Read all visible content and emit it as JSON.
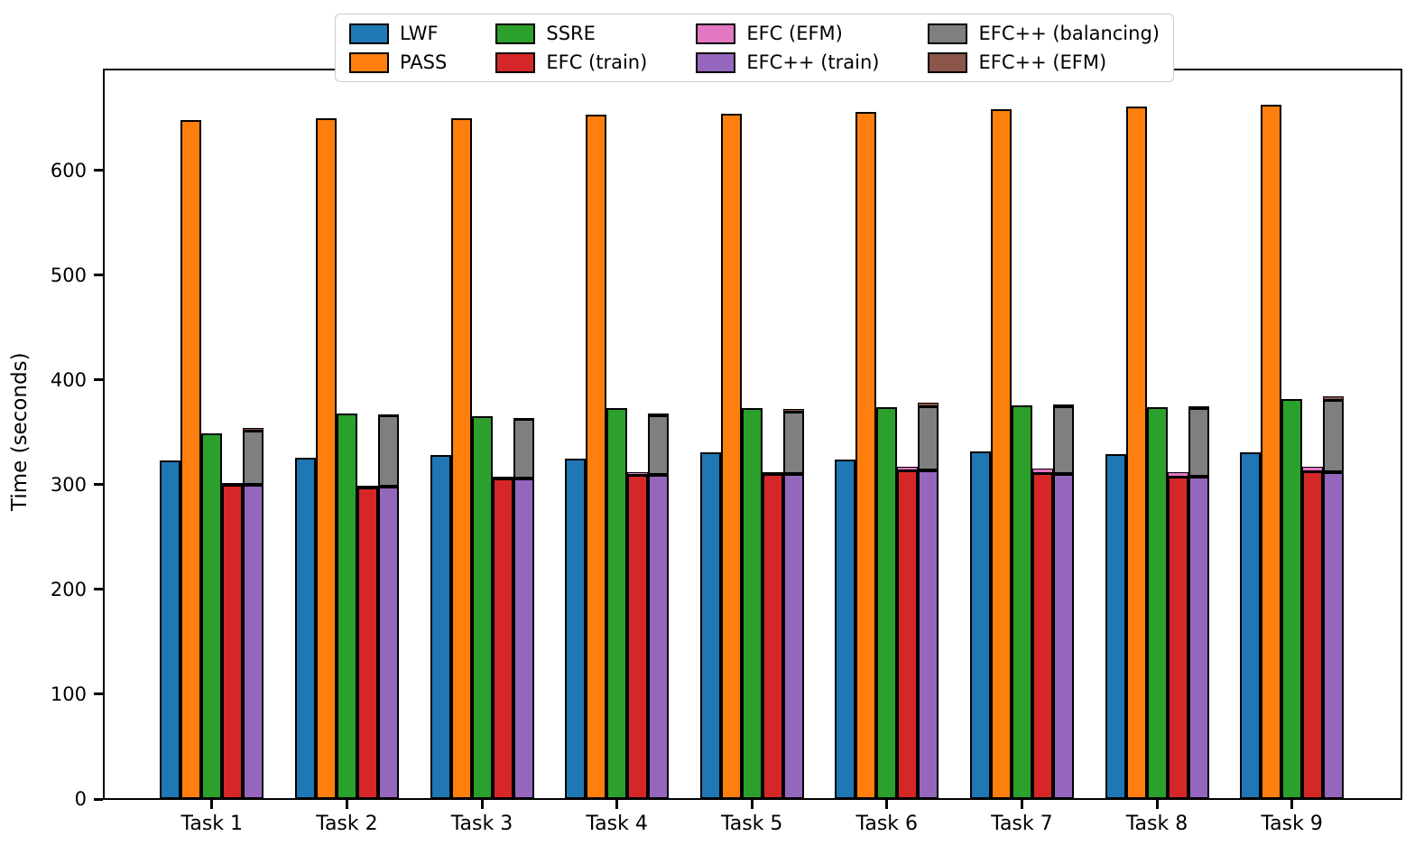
{
  "chart_data": {
    "type": "bar",
    "variant": "grouped-and-stacked",
    "title": "",
    "xlabel": "",
    "ylabel": "Time (seconds)",
    "ylim": [
      0,
      698
    ],
    "yticks": [
      0,
      100,
      200,
      300,
      400,
      500,
      600
    ],
    "grid": false,
    "legend_position": "top-center",
    "bar_edge_color": "#000000",
    "categories": [
      "Task 1",
      "Task 2",
      "Task 3",
      "Task 4",
      "Task 5",
      "Task 6",
      "Task 7",
      "Task 8",
      "Task 9"
    ],
    "series": [
      {
        "name": "LWF",
        "color": "#1f77b4",
        "values": [
          323,
          326,
          328,
          325,
          331,
          324,
          332,
          329,
          331
        ]
      },
      {
        "name": "PASS",
        "color": "#ff7f0e",
        "values": [
          648,
          650,
          650,
          653,
          654,
          656,
          658,
          661,
          663
        ]
      },
      {
        "name": "SSRE",
        "color": "#2ca02c",
        "values": [
          349,
          368,
          365,
          373,
          373,
          374,
          376,
          374,
          382
        ]
      },
      {
        "name": "EFC (train)",
        "color": "#d62728",
        "values": [
          300,
          297,
          306,
          309,
          310,
          314,
          311,
          308,
          313
        ]
      },
      {
        "name": "EFC (EFM)",
        "color": "#e377c2",
        "values": [
          2,
          2,
          2,
          3,
          2,
          3,
          4,
          4,
          4
        ]
      },
      {
        "name": "EFC++ (train)",
        "color": "#9467bd",
        "values": [
          300,
          298,
          306,
          309,
          310,
          314,
          310,
          308,
          312
        ]
      },
      {
        "name": "EFC++ (balancing)",
        "color": "#7f7f7f",
        "values": [
          52,
          68,
          57,
          57,
          60,
          61,
          65,
          65,
          69
        ]
      },
      {
        "name": "EFC++ (EFM)",
        "color": "#8c564b",
        "values": [
          2,
          1,
          1,
          2,
          2,
          3,
          2,
          2,
          3
        ]
      }
    ],
    "bar_columns": [
      [
        0
      ],
      [
        1
      ],
      [
        2
      ],
      [
        3,
        4
      ],
      [
        5,
        6,
        7
      ]
    ],
    "legend_columns": [
      [
        "LWF",
        "PASS"
      ],
      [
        "SSRE",
        "EFC (train)"
      ],
      [
        "EFC (EFM)",
        "EFC++ (train)"
      ],
      [
        "EFC++ (balancing)",
        "EFC++ (EFM)"
      ]
    ]
  }
}
